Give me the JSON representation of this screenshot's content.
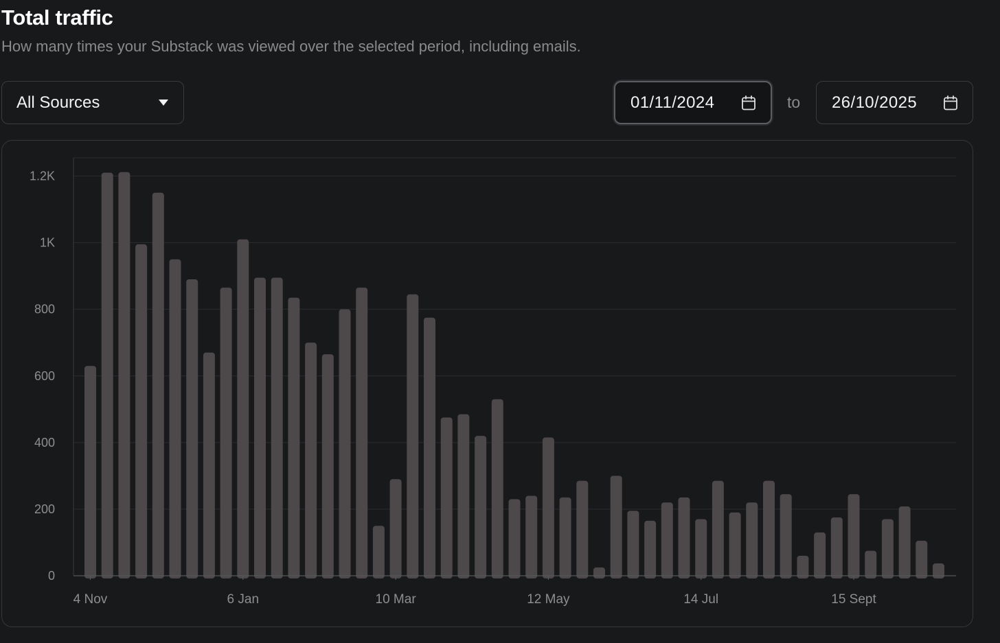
{
  "header": {
    "title": "Total traffic",
    "subtitle": "How many times your Substack was viewed over the selected period, including emails."
  },
  "filters": {
    "source": {
      "selected": "All Sources",
      "icon": "caret-down-icon"
    },
    "date_from": {
      "value": "01/11/2024",
      "icon": "calendar-icon"
    },
    "separator": "to",
    "date_to": {
      "value": "26/10/2025",
      "icon": "calendar-icon"
    }
  },
  "colors": {
    "background": "#17191b",
    "bar": "#4d4849",
    "grid": "#2a2c2f",
    "tick_text": "#8e8e8e"
  },
  "chart_data": {
    "type": "bar",
    "title": "",
    "xlabel": "",
    "ylabel": "",
    "ylim": [
      0,
      1250
    ],
    "y_ticks": [
      {
        "value": 0,
        "label": "0"
      },
      {
        "value": 200,
        "label": "200"
      },
      {
        "value": 400,
        "label": "400"
      },
      {
        "value": 600,
        "label": "600"
      },
      {
        "value": 800,
        "label": "800"
      },
      {
        "value": 1000,
        "label": "1K"
      },
      {
        "value": 1200,
        "label": "1.2K"
      }
    ],
    "x_tick_labels": [
      {
        "label": "4 Nov",
        "bar_index": 0
      },
      {
        "label": "6 Jan",
        "bar_index": 9
      },
      {
        "label": "10 Mar",
        "bar_index": 18
      },
      {
        "label": "12 May",
        "bar_index": 27
      },
      {
        "label": "14 Jul",
        "bar_index": 36
      },
      {
        "label": "15 Sept",
        "bar_index": 45
      }
    ],
    "grid": true,
    "legend": "none",
    "series": [
      {
        "values": [
          630,
          1210,
          1212,
          995,
          1150,
          950,
          890,
          670,
          865,
          1010,
          895,
          895,
          835,
          700,
          665,
          800,
          865,
          150,
          290,
          845,
          775,
          475,
          485,
          420,
          530,
          230,
          240,
          415,
          235,
          285,
          25,
          300,
          195,
          165,
          220,
          235,
          170,
          285,
          190,
          220,
          285,
          245,
          60,
          130,
          175,
          245,
          75,
          170,
          208,
          105,
          37
        ]
      }
    ]
  }
}
